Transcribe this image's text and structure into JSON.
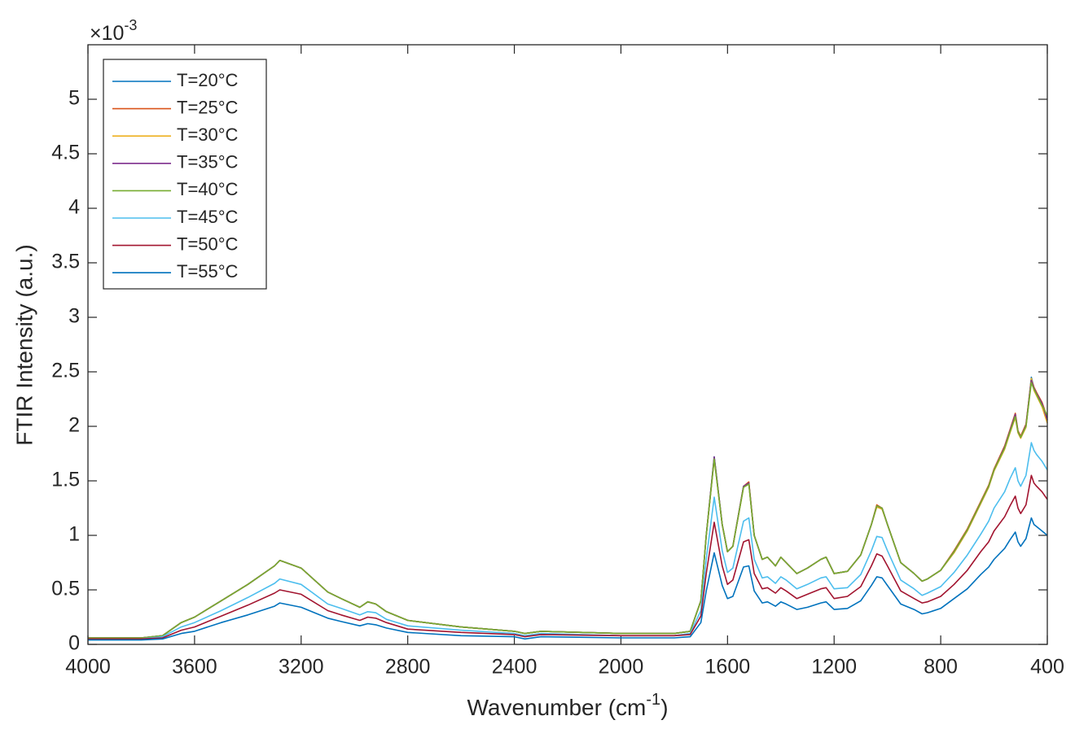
{
  "chart_data": {
    "type": "line",
    "ylabel": "FTIR Intensity (a.u.)",
    "xlabel": "Wavenumber (cm",
    "xlabel_sup": "-1",
    "xlabel_end": ")",
    "y_multiplier": "×10",
    "y_multiplier_exp": "-3",
    "xlim": [
      4000,
      400
    ],
    "xticks": [
      4000,
      3600,
      3200,
      2800,
      2400,
      2000,
      1600,
      1200,
      800,
      400
    ],
    "ylim": [
      0,
      5.5
    ],
    "yticks": [
      0,
      0.5,
      1,
      1.5,
      2,
      2.5,
      3,
      3.5,
      4,
      4.5,
      5
    ],
    "legend_loc": "upper left",
    "x": [
      4000,
      3800,
      3720,
      3650,
      3600,
      3500,
      3400,
      3300,
      3280,
      3200,
      3100,
      3050,
      2980,
      2950,
      2920,
      2880,
      2800,
      2600,
      2400,
      2360,
      2300,
      2000,
      1800,
      1740,
      1700,
      1680,
      1650,
      1620,
      1600,
      1580,
      1540,
      1520,
      1500,
      1470,
      1450,
      1420,
      1400,
      1380,
      1340,
      1300,
      1250,
      1230,
      1200,
      1150,
      1100,
      1060,
      1040,
      1020,
      1000,
      950,
      900,
      870,
      850,
      800,
      750,
      700,
      650,
      620,
      600,
      560,
      540,
      520,
      510,
      500,
      480,
      460,
      450,
      440,
      420,
      400
    ],
    "series": [
      {
        "name": "T=20°C",
        "color": "#0072BD",
        "values": [
          0.06,
          0.06,
          0.08,
          0.2,
          0.25,
          0.4,
          0.55,
          0.72,
          0.77,
          0.7,
          0.48,
          0.42,
          0.34,
          0.39,
          0.37,
          0.3,
          0.22,
          0.16,
          0.12,
          0.1,
          0.12,
          0.1,
          0.1,
          0.12,
          0.4,
          1.0,
          1.72,
          1.1,
          0.85,
          0.9,
          1.45,
          1.48,
          1.0,
          0.78,
          0.8,
          0.72,
          0.8,
          0.75,
          0.65,
          0.7,
          0.78,
          0.8,
          0.65,
          0.67,
          0.82,
          1.1,
          1.27,
          1.25,
          1.1,
          0.75,
          0.65,
          0.58,
          0.6,
          0.68,
          0.85,
          1.05,
          1.3,
          1.45,
          1.6,
          1.8,
          1.95,
          2.1,
          1.95,
          1.9,
          2.0,
          2.45,
          2.35,
          2.3,
          2.2,
          2.05
        ]
      },
      {
        "name": "T=25°C",
        "color": "#D95319",
        "values": [
          0.06,
          0.06,
          0.08,
          0.2,
          0.25,
          0.4,
          0.55,
          0.72,
          0.77,
          0.7,
          0.48,
          0.42,
          0.34,
          0.39,
          0.37,
          0.3,
          0.22,
          0.16,
          0.12,
          0.1,
          0.12,
          0.1,
          0.1,
          0.12,
          0.4,
          1.0,
          1.71,
          1.1,
          0.85,
          0.9,
          1.45,
          1.49,
          1.0,
          0.78,
          0.8,
          0.72,
          0.8,
          0.75,
          0.65,
          0.7,
          0.78,
          0.8,
          0.65,
          0.67,
          0.82,
          1.1,
          1.28,
          1.25,
          1.1,
          0.75,
          0.65,
          0.58,
          0.6,
          0.68,
          0.86,
          1.06,
          1.31,
          1.46,
          1.61,
          1.82,
          1.97,
          2.12,
          1.96,
          1.91,
          2.02,
          2.43,
          2.36,
          2.31,
          2.22,
          2.08
        ]
      },
      {
        "name": "T=30°C",
        "color": "#EDB120",
        "values": [
          0.06,
          0.06,
          0.08,
          0.2,
          0.25,
          0.4,
          0.55,
          0.72,
          0.77,
          0.7,
          0.48,
          0.42,
          0.34,
          0.39,
          0.37,
          0.3,
          0.22,
          0.16,
          0.12,
          0.1,
          0.12,
          0.1,
          0.1,
          0.12,
          0.4,
          1.0,
          1.7,
          1.1,
          0.85,
          0.9,
          1.44,
          1.47,
          1.0,
          0.78,
          0.8,
          0.72,
          0.8,
          0.75,
          0.65,
          0.7,
          0.78,
          0.8,
          0.65,
          0.67,
          0.82,
          1.1,
          1.26,
          1.24,
          1.1,
          0.75,
          0.65,
          0.58,
          0.6,
          0.68,
          0.84,
          1.04,
          1.29,
          1.44,
          1.59,
          1.79,
          1.94,
          2.08,
          1.94,
          1.89,
          1.99,
          2.44,
          2.33,
          2.28,
          2.18,
          2.03
        ]
      },
      {
        "name": "T=35°C",
        "color": "#7E2F8E",
        "values": [
          0.06,
          0.06,
          0.08,
          0.2,
          0.25,
          0.4,
          0.55,
          0.72,
          0.77,
          0.7,
          0.48,
          0.42,
          0.34,
          0.39,
          0.37,
          0.3,
          0.22,
          0.16,
          0.12,
          0.1,
          0.12,
          0.1,
          0.1,
          0.12,
          0.4,
          1.0,
          1.72,
          1.1,
          0.85,
          0.9,
          1.45,
          1.48,
          1.0,
          0.78,
          0.8,
          0.72,
          0.8,
          0.75,
          0.65,
          0.7,
          0.78,
          0.8,
          0.65,
          0.67,
          0.82,
          1.1,
          1.27,
          1.25,
          1.1,
          0.75,
          0.65,
          0.58,
          0.6,
          0.68,
          0.85,
          1.05,
          1.3,
          1.45,
          1.6,
          1.81,
          1.96,
          2.11,
          1.95,
          1.9,
          2.01,
          2.42,
          2.35,
          2.3,
          2.21,
          2.06
        ]
      },
      {
        "name": "T=40°C",
        "color": "#77AC30",
        "values": [
          0.06,
          0.06,
          0.08,
          0.2,
          0.25,
          0.4,
          0.55,
          0.72,
          0.77,
          0.7,
          0.48,
          0.42,
          0.34,
          0.39,
          0.37,
          0.3,
          0.22,
          0.16,
          0.12,
          0.1,
          0.12,
          0.1,
          0.1,
          0.12,
          0.4,
          1.0,
          1.7,
          1.1,
          0.85,
          0.9,
          1.44,
          1.47,
          1.0,
          0.78,
          0.8,
          0.72,
          0.8,
          0.75,
          0.65,
          0.7,
          0.78,
          0.8,
          0.65,
          0.67,
          0.82,
          1.1,
          1.27,
          1.25,
          1.1,
          0.75,
          0.65,
          0.58,
          0.6,
          0.68,
          0.85,
          1.05,
          1.3,
          1.45,
          1.6,
          1.8,
          1.95,
          2.09,
          1.95,
          1.9,
          2.0,
          2.4,
          2.34,
          2.29,
          2.19,
          2.1
        ]
      },
      {
        "name": "T=45°C",
        "color": "#4DBEEE",
        "values": [
          0.05,
          0.05,
          0.07,
          0.16,
          0.2,
          0.31,
          0.43,
          0.56,
          0.6,
          0.55,
          0.37,
          0.33,
          0.27,
          0.3,
          0.29,
          0.23,
          0.17,
          0.13,
          0.1,
          0.08,
          0.1,
          0.08,
          0.08,
          0.1,
          0.31,
          0.78,
          1.35,
          0.86,
          0.66,
          0.7,
          1.13,
          1.16,
          0.78,
          0.61,
          0.62,
          0.56,
          0.62,
          0.59,
          0.51,
          0.55,
          0.61,
          0.62,
          0.51,
          0.52,
          0.64,
          0.86,
          0.99,
          0.98,
          0.86,
          0.59,
          0.51,
          0.45,
          0.47,
          0.53,
          0.66,
          0.82,
          1.01,
          1.13,
          1.25,
          1.4,
          1.52,
          1.62,
          1.5,
          1.45,
          1.55,
          1.85,
          1.78,
          1.74,
          1.68,
          1.6
        ]
      },
      {
        "name": "T=50°C",
        "color": "#A2142F",
        "values": [
          0.05,
          0.05,
          0.06,
          0.13,
          0.16,
          0.26,
          0.36,
          0.47,
          0.5,
          0.46,
          0.31,
          0.27,
          0.22,
          0.25,
          0.24,
          0.2,
          0.14,
          0.11,
          0.09,
          0.07,
          0.09,
          0.08,
          0.08,
          0.09,
          0.26,
          0.65,
          1.12,
          0.72,
          0.55,
          0.59,
          0.94,
          0.96,
          0.65,
          0.51,
          0.52,
          0.47,
          0.52,
          0.49,
          0.42,
          0.46,
          0.51,
          0.52,
          0.42,
          0.44,
          0.53,
          0.72,
          0.83,
          0.81,
          0.72,
          0.49,
          0.42,
          0.38,
          0.39,
          0.44,
          0.55,
          0.68,
          0.85,
          0.94,
          1.04,
          1.17,
          1.27,
          1.36,
          1.25,
          1.2,
          1.28,
          1.55,
          1.48,
          1.45,
          1.4,
          1.33
        ]
      },
      {
        "name": "T=55°C",
        "color": "#0072BD",
        "values": [
          0.04,
          0.04,
          0.05,
          0.1,
          0.12,
          0.2,
          0.27,
          0.35,
          0.38,
          0.34,
          0.24,
          0.21,
          0.17,
          0.19,
          0.18,
          0.15,
          0.11,
          0.08,
          0.07,
          0.05,
          0.07,
          0.06,
          0.06,
          0.07,
          0.2,
          0.49,
          0.84,
          0.54,
          0.42,
          0.44,
          0.71,
          0.72,
          0.49,
          0.38,
          0.39,
          0.35,
          0.39,
          0.37,
          0.32,
          0.34,
          0.38,
          0.39,
          0.32,
          0.33,
          0.4,
          0.54,
          0.62,
          0.61,
          0.54,
          0.37,
          0.32,
          0.28,
          0.29,
          0.33,
          0.42,
          0.51,
          0.64,
          0.71,
          0.78,
          0.88,
          0.96,
          1.03,
          0.94,
          0.9,
          0.97,
          1.16,
          1.1,
          1.08,
          1.04,
          1.0
        ]
      }
    ]
  }
}
